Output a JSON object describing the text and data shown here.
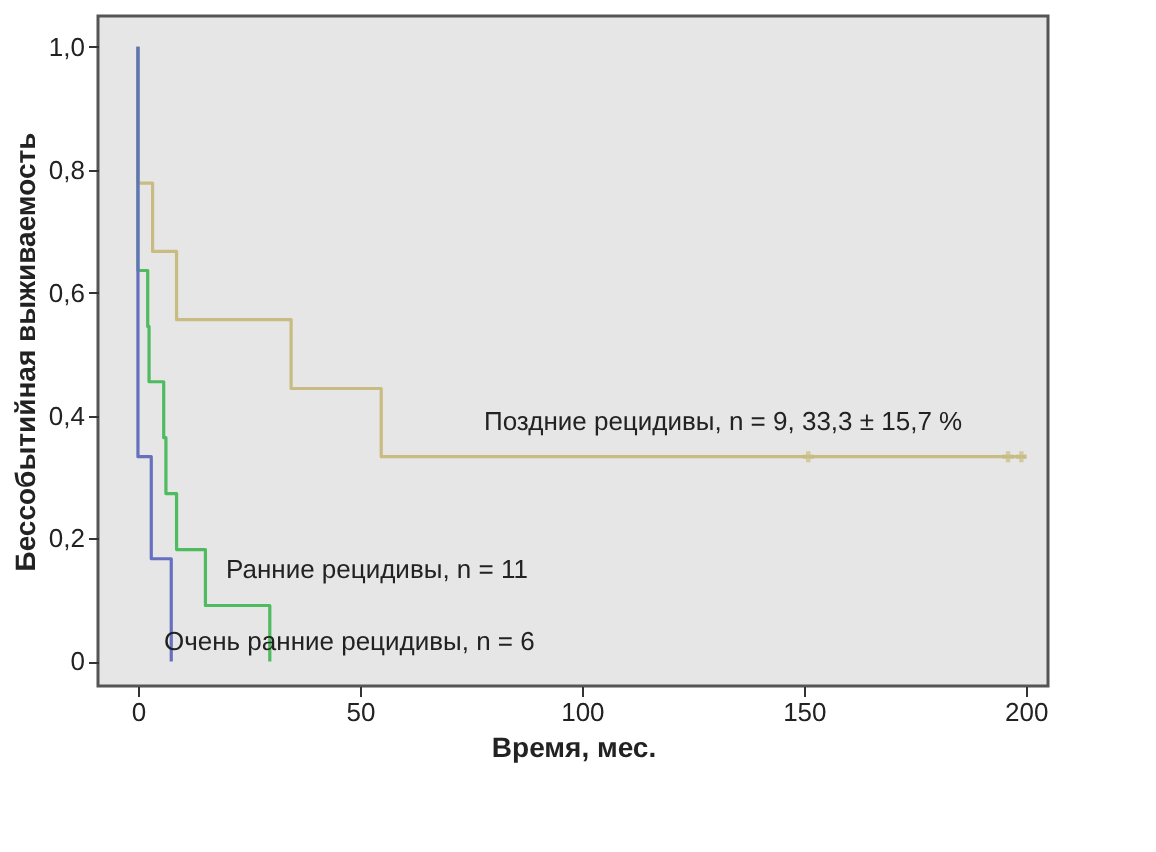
{
  "chart_data": {
    "type": "step",
    "xlabel": "Время, мес.",
    "ylabel": "Бессобытийная выживаемость",
    "xlim": [
      -9,
      205
    ],
    "xticks": [
      0,
      50,
      100,
      150,
      200
    ],
    "ylim": [
      -0.04,
      1.05
    ],
    "yticks": [
      {
        "value": 0,
        "label": "0"
      },
      {
        "value": 0.2,
        "label": "0,2"
      },
      {
        "value": 0.4,
        "label": "0,4"
      },
      {
        "value": 0.6,
        "label": "0,6"
      },
      {
        "value": 0.8,
        "label": "0,8"
      },
      {
        "value": 1,
        "label": "1,0"
      }
    ],
    "grid": false,
    "line_style": "solid",
    "series": [
      {
        "name": "Поздние рецидивы, n = 9, 33,3 ± 15,7 %",
        "color": "#c8bc82",
        "x": [
          0,
          0,
          3.3,
          8.7,
          34.5,
          54.8,
          200
        ],
        "values": [
          1,
          0.778,
          0.667,
          0.556,
          0.444,
          0.333,
          0.333
        ]
      },
      {
        "name": "Ранние рецидивы, n = 11",
        "color": "#4dbb5e",
        "x": [
          0,
          0,
          2.2,
          2.5,
          5.8,
          6.3,
          8.7,
          15.2,
          29.7
        ],
        "values": [
          1,
          0.636,
          0.545,
          0.455,
          0.364,
          0.273,
          0.182,
          0.091,
          0
        ]
      },
      {
        "name": "Очень ранние рецидивы, n = 6",
        "color": "#6670c0",
        "x": [
          0,
          0,
          3,
          7.5
        ],
        "values": [
          1,
          0.333,
          0.167,
          0
        ]
      },
      {
        "type": "scatter",
        "marker": "cross",
        "color": "#c8bc82",
        "x": [
          151,
          196,
          199
        ],
        "values": [
          0.333,
          0.333,
          0.333
        ]
      }
    ]
  }
}
